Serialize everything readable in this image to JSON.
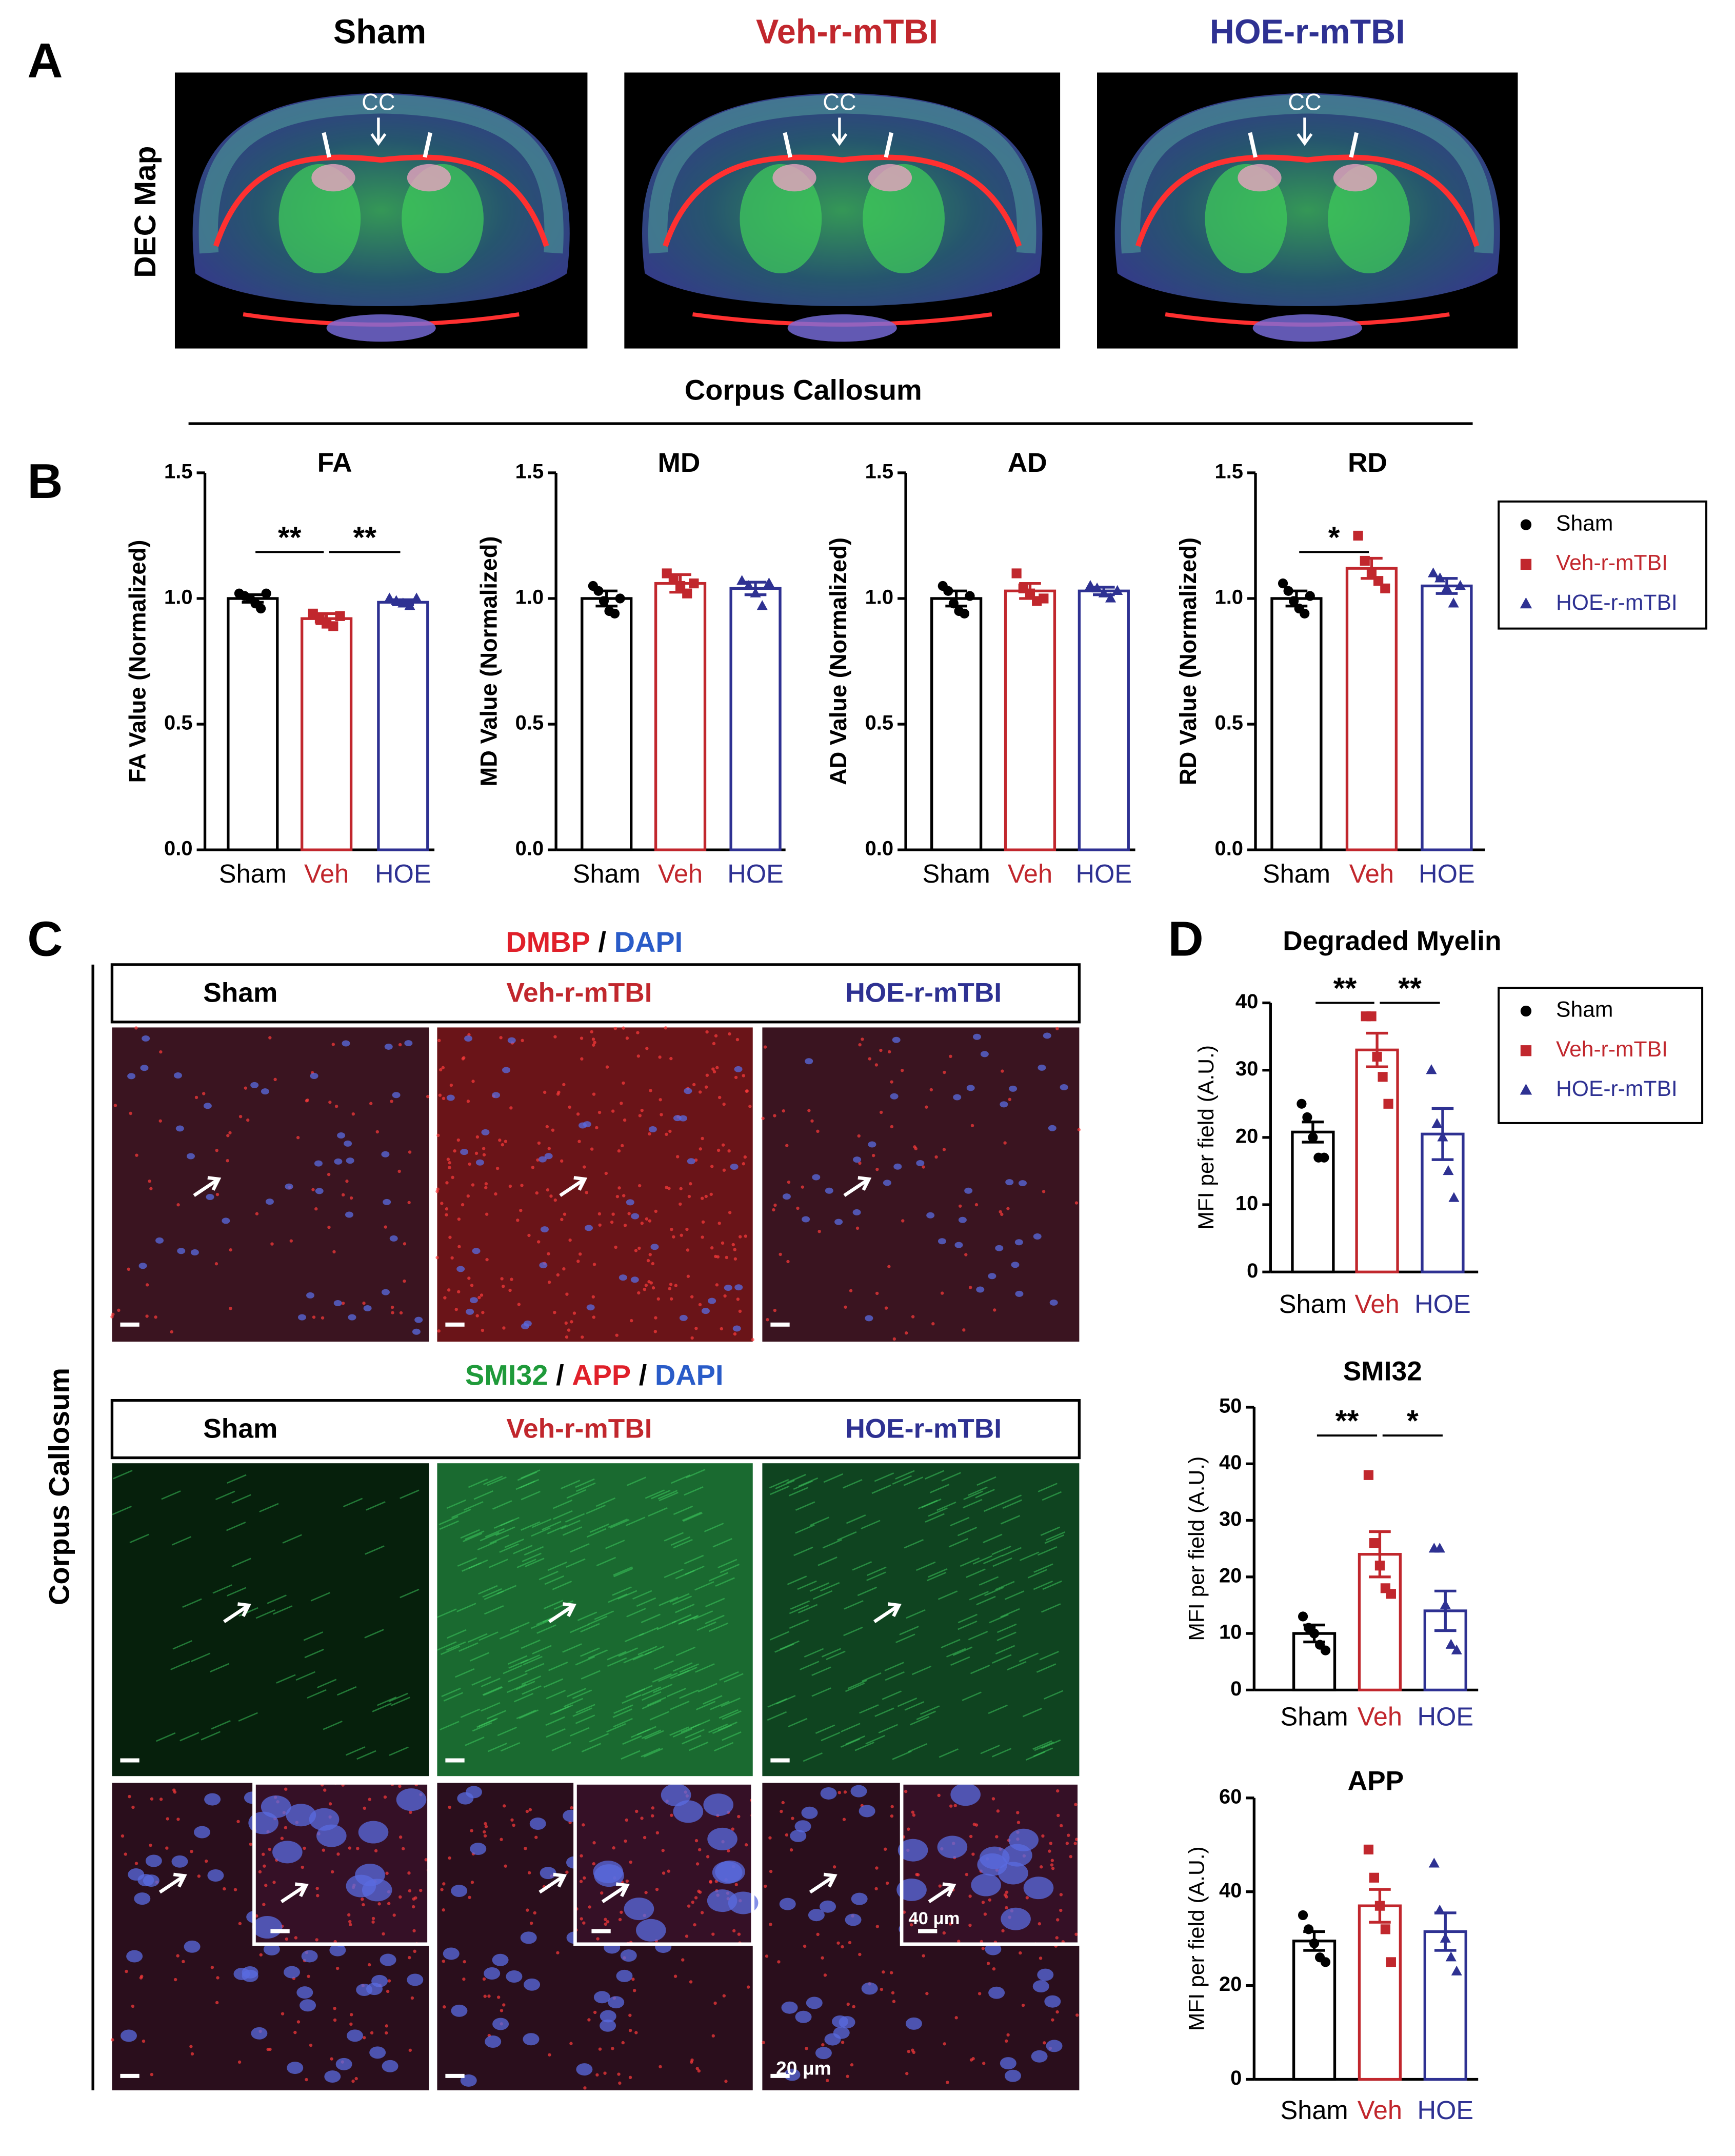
{
  "figure": {
    "panel_labels": [
      "A",
      "B",
      "C",
      "D"
    ],
    "group_titles": [
      {
        "text": "Sham",
        "color": "#000000"
      },
      {
        "text": "Veh-r-mTBI",
        "color": "#c1272d"
      },
      {
        "text": "HOE-r-mTBI",
        "color": "#2e3192"
      }
    ],
    "dec_label": "DEC Map",
    "cc_labels": [
      "CC",
      "CC",
      "CC"
    ],
    "section_title": "Corpus Callosum",
    "side_label": "Corpus Callosum",
    "stain_title_1": {
      "parts": [
        "DMBP",
        "/",
        "DAPI"
      ],
      "colors": [
        "#e0202a",
        "#000000",
        "#2a5cc8"
      ]
    },
    "header_1": [
      {
        "text": "Sham",
        "color": "#000000"
      },
      {
        "text": "Veh-r-mTBI",
        "color": "#c1272d"
      },
      {
        "text": "HOE-r-mTBI",
        "color": "#2e3192"
      }
    ],
    "stain_title_2": {
      "parts": [
        "SMI32",
        "/",
        "APP",
        "/",
        "DAPI"
      ],
      "colors": [
        "#1f9a3a",
        "#000000",
        "#e0202a",
        "#000000",
        "#2a5cc8"
      ]
    },
    "header_2": [
      {
        "text": "Sham",
        "color": "#000000"
      },
      {
        "text": "Veh-r-mTBI",
        "color": "#c1272d"
      },
      {
        "text": "HOE-r-mTBI",
        "color": "#2e3192"
      }
    ],
    "scale_bar_inset": "40 μm",
    "scale_bar_main": "20 μm"
  },
  "chart_data": [
    {
      "type": "bar",
      "title": "FA",
      "ylabel": "FA Value (Normalized)",
      "categories": [
        "Sham",
        "Veh",
        "HOE"
      ],
      "colors": [
        "#000000",
        "#c1272d",
        "#2e3192"
      ],
      "values": [
        1.0,
        0.92,
        0.985
      ],
      "errors": [
        0.015,
        0.02,
        0.01
      ],
      "points": [
        [
          1.02,
          1.01,
          1.0,
          0.98,
          0.96,
          1.02
        ],
        [
          0.94,
          0.92,
          0.9,
          0.89,
          0.93
        ],
        [
          1.0,
          0.99,
          0.98,
          0.97,
          1.0
        ]
      ],
      "ylim": [
        0,
        1.5
      ],
      "yticks": [
        {
          "value": 0,
          "label": "0.0"
        },
        {
          "value": 0.5,
          "label": "0.5"
        },
        {
          "value": 1,
          "label": "1.0"
        },
        {
          "value": 1.5,
          "label": "1.5"
        }
      ],
      "significance": [
        {
          "label": "**",
          "categories": [
            0,
            1
          ]
        },
        {
          "label": "**",
          "categories": [
            1,
            2
          ]
        }
      ]
    },
    {
      "type": "bar",
      "title": "MD",
      "ylabel": "MD Value (Normalized)",
      "categories": [
        "Sham",
        "Veh",
        "HOE"
      ],
      "colors": [
        "#000000",
        "#c1272d",
        "#2e3192"
      ],
      "values": [
        1.0,
        1.06,
        1.04
      ],
      "errors": [
        0.03,
        0.035,
        0.025
      ],
      "points": [
        [
          1.05,
          1.03,
          0.99,
          0.95,
          0.94,
          1.0
        ],
        [
          1.1,
          1.08,
          1.05,
          1.02,
          1.06
        ],
        [
          1.07,
          1.05,
          1.02,
          0.97,
          1.06
        ]
      ],
      "ylim": [
        0,
        1.5
      ],
      "yticks": [
        {
          "value": 0,
          "label": "0.0"
        },
        {
          "value": 0.5,
          "label": "0.5"
        },
        {
          "value": 1,
          "label": "1.0"
        },
        {
          "value": 1.5,
          "label": "1.5"
        }
      ]
    },
    {
      "type": "bar",
      "title": "AD",
      "ylabel": "AD Value (Normalized)",
      "categories": [
        "Sham",
        "Veh",
        "HOE"
      ],
      "colors": [
        "#000000",
        "#c1272d",
        "#2e3192"
      ],
      "values": [
        1.0,
        1.03,
        1.03
      ],
      "errors": [
        0.03,
        0.03,
        0.015
      ],
      "points": [
        [
          1.05,
          1.03,
          0.98,
          0.95,
          0.94,
          1.01
        ],
        [
          1.1,
          1.04,
          1.02,
          0.99,
          1.0
        ],
        [
          1.05,
          1.04,
          1.02,
          1.0,
          1.03
        ]
      ],
      "ylim": [
        0,
        1.5
      ],
      "yticks": [
        {
          "value": 0,
          "label": "0.0"
        },
        {
          "value": 0.5,
          "label": "0.5"
        },
        {
          "value": 1,
          "label": "1.0"
        },
        {
          "value": 1.5,
          "label": "1.5"
        }
      ]
    },
    {
      "type": "bar",
      "title": "RD",
      "ylabel": "RD Value (Normalized)",
      "categories": [
        "Sham",
        "Veh",
        "HOE"
      ],
      "colors": [
        "#000000",
        "#c1272d",
        "#2e3192"
      ],
      "values": [
        1.0,
        1.12,
        1.05
      ],
      "errors": [
        0.03,
        0.04,
        0.03
      ],
      "points": [
        [
          1.06,
          1.03,
          0.99,
          0.96,
          0.94,
          1.01
        ],
        [
          1.25,
          1.15,
          1.1,
          1.07,
          1.04
        ],
        [
          1.1,
          1.08,
          1.04,
          0.98,
          1.05
        ]
      ],
      "ylim": [
        0,
        1.5
      ],
      "yticks": [
        {
          "value": 0,
          "label": "0.0"
        },
        {
          "value": 0.5,
          "label": "0.5"
        },
        {
          "value": 1,
          "label": "1.0"
        },
        {
          "value": 1.5,
          "label": "1.5"
        }
      ],
      "significance": [
        {
          "label": "*",
          "categories": [
            0,
            1
          ]
        }
      ],
      "legend": [
        "Sham",
        "Veh-r-mTBI",
        "HOE-r-mTBI"
      ]
    },
    {
      "type": "bar",
      "title": "Degraded Myelin",
      "ylabel": "MFI per field (A.U.)",
      "categories": [
        "Sham",
        "Veh",
        "HOE"
      ],
      "colors": [
        "#000000",
        "#c1272d",
        "#2e3192"
      ],
      "values": [
        20.8,
        33,
        20.5
      ],
      "errors": [
        1.5,
        2.5,
        3.8
      ],
      "points": [
        [
          25,
          23,
          20,
          17,
          17
        ],
        [
          38,
          38,
          32,
          29,
          25
        ],
        [
          30,
          22,
          20,
          15,
          11
        ]
      ],
      "ylim": [
        0,
        40
      ],
      "yticks": [
        0,
        10,
        20,
        30,
        40
      ],
      "significance": [
        {
          "label": "**",
          "categories": [
            0,
            1
          ]
        },
        {
          "label": "**",
          "categories": [
            1,
            2
          ]
        }
      ],
      "legend": [
        "Sham",
        "Veh-r-mTBI",
        "HOE-r-mTBI"
      ]
    },
    {
      "type": "bar",
      "title": "SMI32",
      "ylabel": "MFI per field (A.U.)",
      "categories": [
        "Sham",
        "Veh",
        "HOE"
      ],
      "colors": [
        "#000000",
        "#c1272d",
        "#2e3192"
      ],
      "values": [
        10,
        24,
        14
      ],
      "errors": [
        1.5,
        4,
        3.5
      ],
      "points": [
        [
          13,
          11,
          10,
          8,
          7
        ],
        [
          38,
          26,
          22,
          18,
          17
        ],
        [
          25,
          25,
          15,
          8,
          7
        ]
      ],
      "ylim": [
        0,
        50
      ],
      "yticks": [
        0,
        10,
        20,
        30,
        40,
        50
      ],
      "significance": [
        {
          "label": "**",
          "categories": [
            0,
            1
          ]
        },
        {
          "label": "*",
          "categories": [
            1,
            2
          ]
        }
      ]
    },
    {
      "type": "bar",
      "title": "APP",
      "ylabel": "MFI per field (A.U.)",
      "categories": [
        "Sham",
        "Veh",
        "HOE"
      ],
      "colors": [
        "#000000",
        "#c1272d",
        "#2e3192"
      ],
      "values": [
        29.5,
        37,
        31.5
      ],
      "errors": [
        2,
        3.5,
        4
      ],
      "points": [
        [
          35,
          32,
          29,
          26,
          25
        ],
        [
          49,
          43,
          37,
          32,
          25
        ],
        [
          46,
          36,
          30,
          26,
          23
        ]
      ],
      "ylim": [
        0,
        60
      ],
      "yticks": [
        0,
        20,
        40,
        60
      ]
    }
  ]
}
